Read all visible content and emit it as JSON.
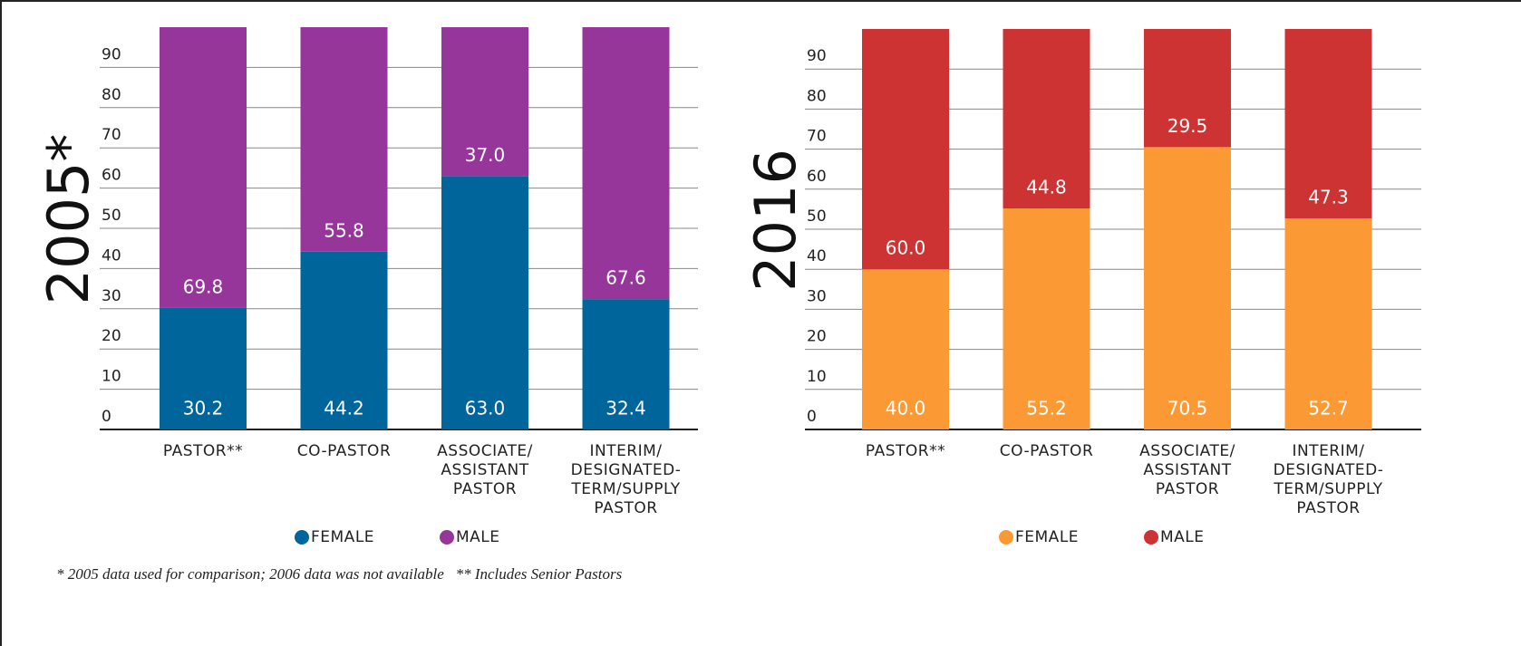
{
  "chart_data": [
    {
      "type": "bar",
      "stacked": true,
      "title": "2005*",
      "categories": [
        "PASTOR**",
        "CO-PASTOR",
        "ASSOCIATE/\nASSISTANT\nPASTOR",
        "INTERIM/\nDESIGNATED-\nTERM/SUPPLY\nPASTOR"
      ],
      "series": [
        {
          "name": "FEMALE",
          "color": "#00659b",
          "values": [
            30.2,
            44.2,
            63,
            32.4
          ],
          "value_labels": [
            "30.2",
            "44.2",
            "63.0",
            "32.4"
          ]
        },
        {
          "name": "MALE",
          "color": "#96369a",
          "values": [
            69.8,
            55.8,
            37,
            67.6
          ],
          "value_labels": [
            "69.8",
            "55.8",
            "37.0",
            "67.6"
          ]
        }
      ],
      "ylim": [
        0,
        100
      ],
      "yticks": [
        0,
        10,
        20,
        30,
        40,
        50,
        60,
        70,
        80,
        90
      ],
      "grid": true
    },
    {
      "type": "bar",
      "stacked": true,
      "title": "2016",
      "categories": [
        "PASTOR**",
        "CO-PASTOR",
        "ASSOCIATE/\nASSISTANT\nPASTOR",
        "INTERIM/\nDESIGNATED-\nTERM/SUPPLY\nPASTOR"
      ],
      "series": [
        {
          "name": "FEMALE",
          "color": "#fb9a34",
          "values": [
            40,
            55.2,
            70.5,
            52.7
          ],
          "value_labels": [
            "40.0",
            "55.2",
            "70.5",
            "52.7"
          ]
        },
        {
          "name": "MALE",
          "color": "#cd3333",
          "values": [
            60,
            44.8,
            29.5,
            47.3
          ],
          "value_labels": [
            "60.0",
            "44.8",
            "29.5",
            "47.3"
          ]
        }
      ],
      "ylim": [
        0,
        100
      ],
      "yticks": [
        0,
        10,
        20,
        30,
        40,
        50,
        60,
        70,
        80,
        90
      ],
      "grid": true
    }
  ],
  "footnote": "* 2005 data used for comparison; 2006 data was not available   ** Includes Senior Pastors"
}
